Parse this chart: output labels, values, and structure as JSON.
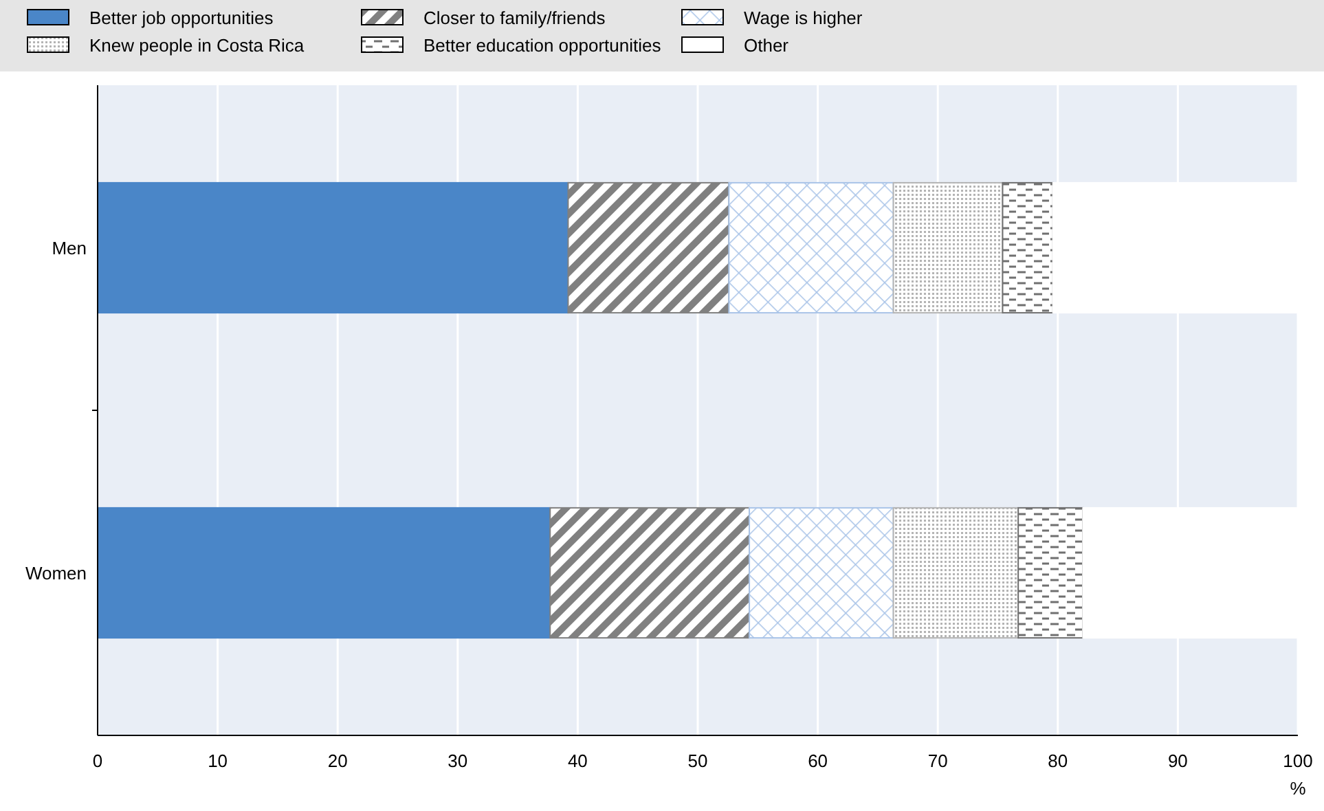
{
  "chart_data": {
    "type": "bar",
    "orientation": "horizontal",
    "stacked": true,
    "xlabel": "%",
    "categories": [
      "Men",
      "Women"
    ],
    "series": [
      {
        "name": "Better job opportunities",
        "color": "#4a86c8",
        "values": [
          39.2,
          37.7
        ]
      },
      {
        "name": "Closer to family/friends",
        "color": "#808080",
        "values": [
          13.4,
          16.6
        ]
      },
      {
        "name": "Wage is higher",
        "color": "#a9c4e8",
        "values": [
          13.7,
          12.0
        ]
      },
      {
        "name": "Knew people in Costa Rica",
        "color": "#b4b4b4",
        "values": [
          9.1,
          10.4
        ]
      },
      {
        "name": "Better education opportunities",
        "color": "#707070",
        "values": [
          4.2,
          5.4
        ]
      },
      {
        "name": "Other",
        "color": "#ffffff",
        "values": [
          20.4,
          17.9
        ]
      }
    ],
    "xlim": [
      0,
      100
    ],
    "xticks": [
      0,
      10,
      20,
      30,
      40,
      50,
      60,
      70,
      80,
      90,
      100
    ],
    "grid": "x",
    "legend": "top"
  }
}
